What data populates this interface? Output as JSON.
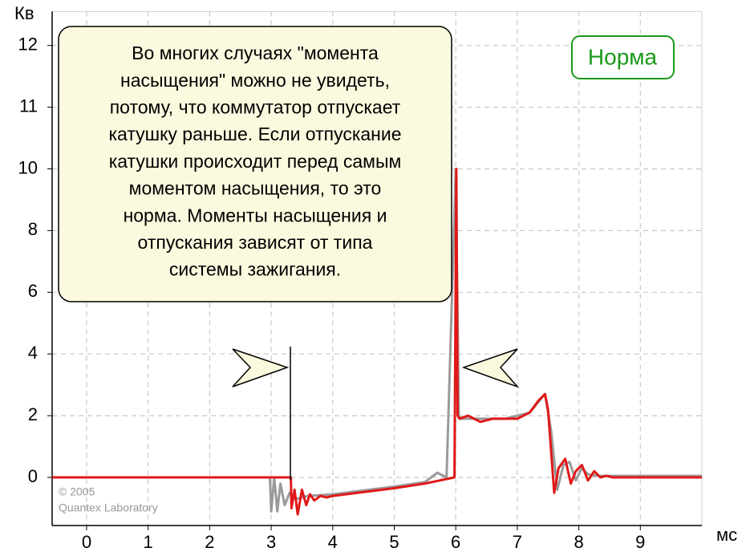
{
  "chart_data": {
    "type": "line",
    "y_axis_label": "Кв",
    "x_axis_label": "мс",
    "xlim": [
      -0.56,
      10.0
    ],
    "xticks": [
      0,
      1,
      2,
      3,
      4,
      5,
      6,
      7,
      8,
      9
    ],
    "ylim": [
      -1.56,
      12.55
    ],
    "yticks": [
      0,
      2,
      4,
      6,
      8,
      10,
      11,
      12
    ],
    "grid": true,
    "series": [
      {
        "name": null,
        "color": "#9a9a9a",
        "x": [
          -0.56,
          2.98,
          3.0,
          3.05,
          3.1,
          3.15,
          3.22,
          3.3,
          3.4,
          3.6,
          4.0,
          5.0,
          5.5,
          5.7,
          5.85,
          6.0,
          6.05,
          6.08,
          6.15,
          6.4,
          6.8,
          7.2,
          7.45,
          7.55,
          7.65,
          7.75,
          7.85,
          7.95,
          8.05,
          8.15,
          8.3,
          8.5,
          10.0
        ],
        "values": [
          0,
          0,
          -1.1,
          0.0,
          -1.1,
          -0.2,
          -0.9,
          -0.5,
          -0.7,
          -0.6,
          -0.55,
          -0.3,
          -0.15,
          0.15,
          0,
          10,
          2.0,
          1.9,
          1.9,
          1.9,
          1.9,
          2.1,
          2.7,
          1.5,
          -0.4,
          0.4,
          0.5,
          -0.1,
          0.3,
          0.1,
          0.05,
          0.05,
          0.05
        ]
      },
      {
        "name": null,
        "color": "#e01818",
        "x": [
          -0.56,
          3.32,
          3.33,
          3.38,
          3.43,
          3.5,
          3.57,
          3.63,
          3.7,
          3.8,
          3.9,
          4.0,
          5.0,
          5.5,
          5.98,
          6.01,
          6.03,
          6.06,
          6.2,
          6.4,
          6.6,
          6.8,
          7.0,
          7.2,
          7.35,
          7.45,
          7.5,
          7.6,
          7.67,
          7.78,
          7.87,
          7.95,
          8.05,
          8.15,
          8.25,
          8.35,
          8.45,
          8.55,
          9.0,
          10.0
        ],
        "values": [
          0,
          0,
          -1.0,
          -0.4,
          -1.2,
          -0.4,
          -0.9,
          -0.55,
          -0.75,
          -0.6,
          -0.65,
          -0.6,
          -0.35,
          -0.2,
          0,
          10,
          2.0,
          1.9,
          2.0,
          1.8,
          1.9,
          1.9,
          1.9,
          2.1,
          2.5,
          2.7,
          2.2,
          -0.5,
          0.3,
          0.6,
          -0.2,
          0.2,
          0.4,
          -0.1,
          0.2,
          0.0,
          0.05,
          0,
          0,
          0
        ]
      }
    ],
    "annotation_lines": [
      "Во многих случаях \"момента",
      "насыщения\" можно не увидеть,",
      "потому, что коммутатор отпускает",
      "катушку раньше.  Если отпускание",
      "катушки происходит перед самым",
      "моментом насыщения, то это",
      "норма. Моменты насыщения и",
      "отпускания зависят от типа",
      "системы зажигания."
    ],
    "status_label": "Норма",
    "copyright_lines": [
      "© 2005",
      "Quantex Laboratory"
    ]
  }
}
